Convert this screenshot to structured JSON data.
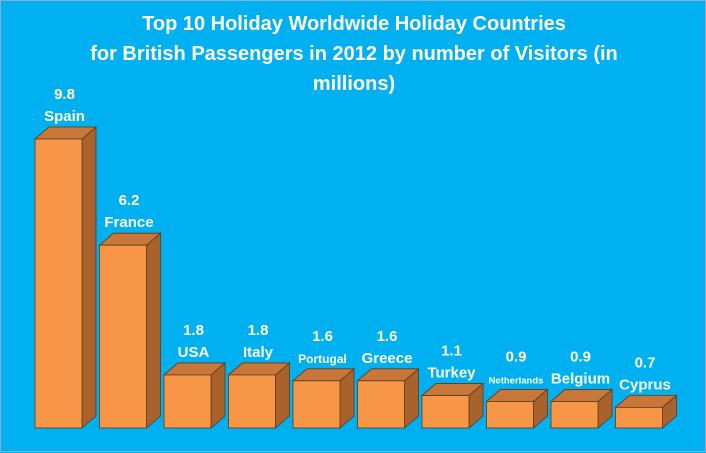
{
  "chart_title": {
    "line1": "Top 10 Holiday Worldwide Holiday Countries",
    "line2": "for British Passengers in 2012 by number of Visitors (in",
    "line3": "millions)"
  },
  "colors": {
    "background": "#00b0f0",
    "bar_front": "#f79646",
    "bar_top": "#c8773a",
    "bar_side": "#a9622b",
    "text": "#ffffff"
  },
  "chart_data": {
    "type": "bar",
    "title": "Top 10 Holiday Worldwide Holiday Countries for British Passengers in 2012 by number of Visitors (in millions)",
    "categories": [
      "Spain",
      "France",
      "USA",
      "Italy",
      "Portugal",
      "Greece",
      "Turkey",
      "Netherlands",
      "Belgium",
      "Cyprus"
    ],
    "values": [
      9.8,
      6.2,
      1.8,
      1.8,
      1.6,
      1.6,
      1.1,
      0.9,
      0.9,
      0.7
    ],
    "value_labels": [
      "9.8",
      "6.2",
      "1.8",
      "1.8",
      "1.6",
      "1.6",
      "1.1",
      "0.9",
      "0.9",
      "0.7"
    ],
    "ylim": [
      0,
      9.8
    ],
    "grid": false,
    "legend": "none",
    "style": "3d-column"
  }
}
